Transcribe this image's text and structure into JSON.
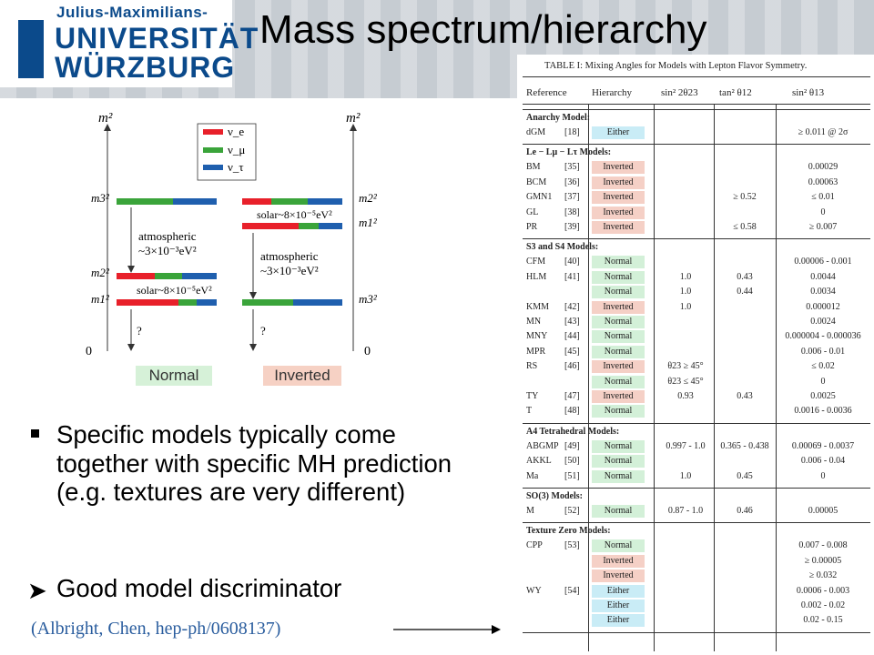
{
  "header": {
    "logo_line1": "Julius-Maximilians-",
    "logo_line2": "UNIVERSITÄT",
    "logo_line3": "WÜRZBURG",
    "title": "Mass spectrum/hierarchy"
  },
  "diagram": {
    "axis_label": "m²",
    "zero": "0",
    "legend": [
      "ν_e",
      "ν_μ",
      "ν_τ"
    ],
    "left_levels": [
      "m3²",
      "m2²",
      "m1²"
    ],
    "right_levels": [
      "m2²",
      "m1²",
      "m3²"
    ],
    "atm_line1": "atmospheric",
    "atm_line2": "~3×10⁻³eV²",
    "solar": "solar~8×10⁻⁵eV²",
    "question": "?",
    "normal_label": "Normal",
    "inverted_label": "Inverted",
    "colors": {
      "nu_e": "#e8202a",
      "nu_mu": "#3aa43a",
      "nu_tau": "#1f5fae"
    }
  },
  "bullets": {
    "b1": "Specific models typically come together with specific MH prediction (e.g. textures are very different)",
    "b2": "Good model discriminator",
    "citation": "(Albright, Chen, hep-ph/0608137)"
  },
  "table": {
    "caption": "TABLE I: Mixing Angles for Models with Lepton Flavor Symmetry.",
    "headers": [
      "Reference",
      "Hierarchy",
      "sin² 2θ23",
      "tan² θ12",
      "sin² θ13"
    ],
    "sections": [
      {
        "title": "Anarchy Model:",
        "rows": [
          {
            "ref": "dGM",
            "cit": "[18]",
            "hier": "Either",
            "s23": "",
            "t12": "",
            "s13": "≥ 0.011 @ 2σ"
          }
        ]
      },
      {
        "title": "Le − Lμ − Lτ Models:",
        "rows": [
          {
            "ref": "BM",
            "cit": "[35]",
            "hier": "Inverted",
            "s23": "",
            "t12": "",
            "s13": "0.00029"
          },
          {
            "ref": "BCM",
            "cit": "[36]",
            "hier": "Inverted",
            "s23": "",
            "t12": "",
            "s13": "0.00063"
          },
          {
            "ref": "GMN1",
            "cit": "[37]",
            "hier": "Inverted",
            "s23": "",
            "t12": "≥ 0.52",
            "s13": "≤ 0.01"
          },
          {
            "ref": "GL",
            "cit": "[38]",
            "hier": "Inverted",
            "s23": "",
            "t12": "",
            "s13": "0"
          },
          {
            "ref": "PR",
            "cit": "[39]",
            "hier": "Inverted",
            "s23": "",
            "t12": "≤ 0.58",
            "s13": "≥ 0.007"
          }
        ]
      },
      {
        "title": "S3 and S4 Models:",
        "rows": [
          {
            "ref": "CFM",
            "cit": "[40]",
            "hier": "Normal",
            "s23": "",
            "t12": "",
            "s13": "0.00006 - 0.001"
          },
          {
            "ref": "HLM",
            "cit": "[41]",
            "hier": "Normal",
            "s23": "1.0",
            "t12": "0.43",
            "s13": "0.0044"
          },
          {
            "ref": "",
            "cit": "",
            "hier": "Normal",
            "s23": "1.0",
            "t12": "0.44",
            "s13": "0.0034"
          },
          {
            "ref": "KMM",
            "cit": "[42]",
            "hier": "Inverted",
            "s23": "1.0",
            "t12": "",
            "s13": "0.000012"
          },
          {
            "ref": "MN",
            "cit": "[43]",
            "hier": "Normal",
            "s23": "",
            "t12": "",
            "s13": "0.0024"
          },
          {
            "ref": "MNY",
            "cit": "[44]",
            "hier": "Normal",
            "s23": "",
            "t12": "",
            "s13": "0.000004 - 0.000036"
          },
          {
            "ref": "MPR",
            "cit": "[45]",
            "hier": "Normal",
            "s23": "",
            "t12": "",
            "s13": "0.006 - 0.01"
          },
          {
            "ref": "RS",
            "cit": "[46]",
            "hier": "Inverted",
            "s23": "θ23 ≥ 45°",
            "t12": "",
            "s13": "≤ 0.02"
          },
          {
            "ref": "",
            "cit": "",
            "hier": "Normal",
            "s23": "θ23 ≤ 45°",
            "t12": "",
            "s13": "0"
          },
          {
            "ref": "TY",
            "cit": "[47]",
            "hier": "Inverted",
            "s23": "0.93",
            "t12": "0.43",
            "s13": "0.0025"
          },
          {
            "ref": "T",
            "cit": "[48]",
            "hier": "Normal",
            "s23": "",
            "t12": "",
            "s13": "0.0016 - 0.0036"
          }
        ]
      },
      {
        "title": "A4 Tetrahedral Models:",
        "rows": [
          {
            "ref": "ABGMP",
            "cit": "[49]",
            "hier": "Normal",
            "s23": "0.997 - 1.0",
            "t12": "0.365 - 0.438",
            "s13": "0.00069 - 0.0037"
          },
          {
            "ref": "AKKL",
            "cit": "[50]",
            "hier": "Normal",
            "s23": "",
            "t12": "",
            "s13": "0.006 - 0.04"
          },
          {
            "ref": "Ma",
            "cit": "[51]",
            "hier": "Normal",
            "s23": "1.0",
            "t12": "0.45",
            "s13": "0"
          }
        ]
      },
      {
        "title": "SO(3) Models:",
        "rows": [
          {
            "ref": "M",
            "cit": "[52]",
            "hier": "Normal",
            "s23": "0.87 - 1.0",
            "t12": "0.46",
            "s13": "0.00005"
          }
        ]
      },
      {
        "title": "Texture Zero Models:",
        "rows": [
          {
            "ref": "CPP",
            "cit": "[53]",
            "hier": "Normal",
            "s23": "",
            "t12": "",
            "s13": "0.007 - 0.008"
          },
          {
            "ref": "",
            "cit": "",
            "hier": "Inverted",
            "s23": "",
            "t12": "",
            "s13": "≥ 0.00005"
          },
          {
            "ref": "",
            "cit": "",
            "hier": "Inverted",
            "s23": "",
            "t12": "",
            "s13": "≥ 0.032"
          },
          {
            "ref": "WY",
            "cit": "[54]",
            "hier": "Either",
            "s23": "",
            "t12": "",
            "s13": "0.0006 - 0.003"
          },
          {
            "ref": "",
            "cit": "",
            "hier": "Either",
            "s23": "",
            "t12": "",
            "s13": "0.002 - 0.02"
          },
          {
            "ref": "",
            "cit": "",
            "hier": "Either",
            "s23": "",
            "t12": "",
            "s13": "0.02 - 0.15"
          }
        ]
      }
    ]
  }
}
